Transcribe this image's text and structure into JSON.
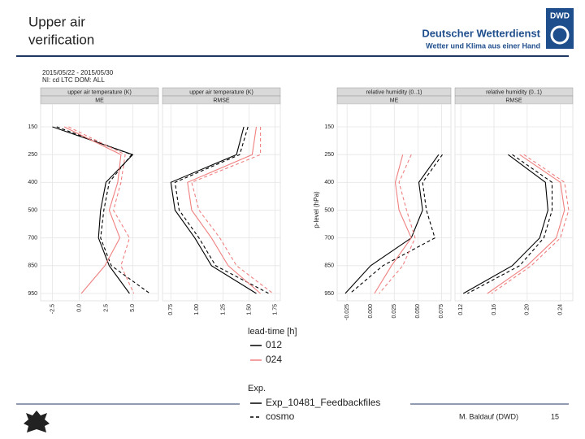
{
  "header": {
    "title_lines": [
      "Upper air",
      "verification"
    ],
    "logo": "DWD",
    "org": "Deutscher Wetterdienst",
    "slogan": "Wetter und Klima aus einer Hand"
  },
  "chart_header": {
    "dates": "2015/05/22 - 2015/05/30",
    "domain": "NI: cd LTC DOM: ALL"
  },
  "y_label": "p-level (hPa)",
  "chart_data": [
    {
      "type": "line",
      "title": "upper air temperature (K)",
      "subtitle": "ME",
      "categories": [
        "150",
        "250",
        "400",
        "500",
        "700",
        "850",
        "950"
      ],
      "xlim": [
        -3.6,
        7.4
      ],
      "xticks": [
        -2.5,
        {
          "value": 0,
          "label": "0.0"
        },
        2.5,
        {
          "value": 5,
          "label": "5.0"
        }
      ],
      "series": [
        {
          "color": "#000000",
          "dash": "solid",
          "values": [
            -2.5,
            5.0,
            2.5,
            2.0,
            1.8,
            2.8,
            4.7
          ]
        },
        {
          "color": "#000000",
          "dash": "dashed",
          "values": [
            -2.1,
            4.9,
            2.8,
            2.3,
            2.0,
            3.0,
            6.6
          ]
        },
        {
          "color": "#f08080",
          "dash": "solid",
          "values": [
            -1.4,
            3.9,
            3.6,
            2.8,
            3.8,
            2.4,
            0.2
          ]
        },
        {
          "color": "#f08080",
          "dash": "dashed",
          "values": [
            -1.0,
            4.3,
            3.9,
            3.2,
            4.7,
            3.9,
            5.1
          ]
        }
      ]
    },
    {
      "type": "line",
      "title": "upper air temperature (K)",
      "subtitle": "RMSE",
      "categories": [
        "150",
        "250",
        "400",
        "500",
        "700",
        "850",
        "950"
      ],
      "xlim": [
        0.67,
        1.8
      ],
      "xticks": [
        0.75,
        {
          "value": 1,
          "label": "1.00"
        },
        1.25,
        {
          "value": 1.5,
          "label": "1.50"
        },
        1.75
      ],
      "series": [
        {
          "color": "#000000",
          "dash": "solid",
          "values": [
            1.45,
            1.38,
            0.75,
            0.79,
            0.98,
            1.14,
            1.57
          ]
        },
        {
          "color": "#000000",
          "dash": "dashed",
          "values": [
            1.49,
            1.41,
            0.79,
            0.83,
            1.02,
            1.18,
            1.69
          ]
        },
        {
          "color": "#f08080",
          "dash": "solid",
          "values": [
            1.57,
            1.53,
            0.91,
            0.95,
            1.14,
            1.3,
            1.61
          ]
        },
        {
          "color": "#f08080",
          "dash": "dashed",
          "values": [
            1.61,
            1.61,
            0.95,
            1.02,
            1.22,
            1.38,
            1.73
          ]
        }
      ]
    },
    {
      "type": "line",
      "title": "relative humidity (0..1)",
      "subtitle": "ME",
      "categories": [
        "150",
        "250",
        "400",
        "500",
        "700",
        "850",
        "950"
      ],
      "xlim": [
        -0.0355,
        0.085
      ],
      "xticks": [
        -0.025,
        {
          "value": 0,
          "label": "0.000"
        },
        0.025,
        {
          "value": 0.05,
          "label": "0.050"
        },
        0.075
      ],
      "series": [
        {
          "color": "#000000",
          "dash": "solid",
          "values": [
            null,
            0.072,
            0.051,
            0.055,
            0.043,
            0.0,
            -0.027
          ]
        },
        {
          "color": "#000000",
          "dash": "dashed",
          "values": [
            null,
            0.076,
            0.055,
            0.059,
            0.068,
            0.013,
            -0.022
          ]
        },
        {
          "color": "#f08080",
          "dash": "solid",
          "values": [
            null,
            0.034,
            0.026,
            0.03,
            0.043,
            0.022,
            0.004
          ]
        },
        {
          "color": "#f08080",
          "dash": "dashed",
          "values": [
            null,
            0.043,
            0.03,
            0.038,
            0.047,
            0.034,
            0.009
          ]
        }
      ]
    },
    {
      "type": "line",
      "title": "relative humidity (0..1)",
      "subtitle": "RMSE",
      "categories": [
        "150",
        "250",
        "400",
        "500",
        "700",
        "850",
        "950"
      ],
      "xlim": [
        0.113,
        0.255
      ],
      "xticks": [
        0.12,
        0.16,
        {
          "value": 0.2,
          "label": "0.20"
        },
        0.24
      ],
      "series": [
        {
          "color": "#000000",
          "dash": "solid",
          "values": [
            null,
            0.177,
            0.222,
            0.225,
            0.215,
            0.182,
            0.123
          ]
        },
        {
          "color": "#000000",
          "dash": "dashed",
          "values": [
            null,
            0.182,
            0.23,
            0.23,
            0.22,
            0.191,
            0.128
          ]
        },
        {
          "color": "#f08080",
          "dash": "solid",
          "values": [
            null,
            0.191,
            0.24,
            0.245,
            0.235,
            0.2,
            0.152
          ]
        },
        {
          "color": "#f08080",
          "dash": "dashed",
          "values": [
            null,
            0.196,
            0.245,
            0.25,
            0.24,
            0.205,
            0.157
          ]
        }
      ]
    }
  ],
  "legend": {
    "lead_time": {
      "title": "lead-time [h]",
      "items": [
        {
          "label": "012",
          "color": "#000000"
        },
        {
          "label": "024",
          "color": "#f08080"
        }
      ]
    },
    "exp": {
      "title": "Exp.",
      "items": [
        {
          "label": "Exp_10481_Feedbackfiles",
          "dash": "solid"
        },
        {
          "label": "cosmo",
          "dash": "dashed"
        }
      ]
    }
  },
  "footer": {
    "author": "M. Baldauf (DWD)",
    "page": "15"
  }
}
